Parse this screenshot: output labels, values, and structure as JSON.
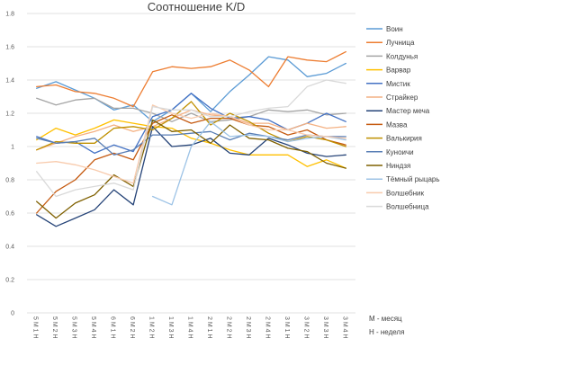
{
  "chart_data": {
    "type": "line",
    "title": "Соотношение K/D",
    "ylim": [
      0,
      1.8
    ],
    "y_ticks": [
      "0",
      "0.2",
      "0.4",
      "0.6",
      "0.8",
      "1",
      "1.2",
      "1.4",
      "1.6",
      "1.8"
    ],
    "grid": true,
    "legend_position": "right",
    "categories": [
      "5 М 1 Н",
      "5 М 2 Н",
      "5 М 3 Н",
      "5 М 4 Н",
      "6 М 1 Н",
      "6 М 2 Н",
      "1 М 2 Н",
      "1 М 3 Н",
      "1 М 4 Н",
      "2 М 1 Н",
      "2 М 2 Н",
      "2 М 3 Н",
      "2 М 4 Н",
      "3 М 1 Н",
      "3 М 2 Н",
      "3 М 3 Н",
      "3 М 4 Н"
    ],
    "notes": [
      "М - месяц",
      "Н - неделя"
    ],
    "series": [
      {
        "name": "Воин",
        "color": "#5B9BD5",
        "values": [
          1.35,
          1.39,
          1.34,
          1.29,
          1.22,
          1.25,
          1.15,
          1.22,
          1.32,
          1.21,
          1.33,
          1.43,
          1.54,
          1.52,
          1.42,
          1.44,
          1.5
        ]
      },
      {
        "name": "Лучница",
        "color": "#ED7D31",
        "values": [
          1.36,
          1.37,
          1.33,
          1.32,
          1.29,
          1.24,
          1.45,
          1.48,
          1.47,
          1.48,
          1.52,
          1.46,
          1.36,
          1.54,
          1.52,
          1.51,
          1.57
        ]
      },
      {
        "name": "Колдунья",
        "color": "#A5A5A5",
        "values": [
          1.29,
          1.25,
          1.28,
          1.29,
          1.23,
          1.23,
          1.2,
          1.15,
          1.2,
          1.15,
          1.16,
          1.18,
          1.22,
          1.21,
          1.22,
          1.19,
          1.2
        ]
      },
      {
        "name": "Варвар",
        "color": "#FFC000",
        "values": [
          1.04,
          1.11,
          1.07,
          1.11,
          1.16,
          1.14,
          1.12,
          1.11,
          1.05,
          1.02,
          0.98,
          0.95,
          0.95,
          0.95,
          0.88,
          0.92,
          0.87
        ]
      },
      {
        "name": "Мистик",
        "color": "#4472C4",
        "values": [
          1.06,
          1.02,
          1.03,
          0.96,
          1.01,
          0.97,
          1.18,
          1.22,
          1.32,
          1.23,
          1.17,
          1.18,
          1.16,
          1.1,
          1.14,
          1.2,
          1.15
        ]
      },
      {
        "name": "Страйкер",
        "color": "#F4B183",
        "values": [
          0.98,
          1.02,
          1.06,
          1.09,
          1.13,
          1.09,
          1.12,
          1.17,
          1.22,
          1.19,
          1.18,
          1.14,
          1.14,
          1.1,
          1.14,
          1.11,
          1.12
        ]
      },
      {
        "name": "Мастер меча",
        "color": "#264478",
        "values": [
          0.59,
          0.52,
          0.57,
          0.62,
          0.74,
          0.65,
          1.12,
          1.0,
          1.01,
          1.05,
          0.96,
          0.95,
          1.05,
          1.01,
          0.96,
          0.94,
          0.95
        ]
      },
      {
        "name": "Мазва",
        "color": "#C55A11",
        "values": [
          0.6,
          0.73,
          0.8,
          0.92,
          0.96,
          0.92,
          1.14,
          1.19,
          1.14,
          1.17,
          1.17,
          1.13,
          1.12,
          1.07,
          1.1,
          1.04,
          1.01
        ]
      },
      {
        "name": "Валькирия",
        "color": "#BF9000",
        "values": [
          0.98,
          1.03,
          1.02,
          1.02,
          1.11,
          1.12,
          1.1,
          1.17,
          1.27,
          1.13,
          1.2,
          1.15,
          1.08,
          1.03,
          1.06,
          1.04,
          1.0
        ]
      },
      {
        "name": "Куноичи",
        "color": "#5A7FB5",
        "values": [
          1.05,
          1.02,
          1.03,
          1.05,
          0.95,
          0.98,
          1.07,
          1.07,
          1.08,
          1.09,
          1.04,
          1.08,
          1.06,
          1.04,
          1.07,
          1.06,
          1.06
        ]
      },
      {
        "name": "Ниндзя",
        "color": "#7F6000",
        "values": [
          0.67,
          0.57,
          0.66,
          0.71,
          0.83,
          0.76,
          1.16,
          1.09,
          1.1,
          1.02,
          1.13,
          1.05,
          1.04,
          0.99,
          0.97,
          0.9,
          0.87
        ]
      },
      {
        "name": "Тёмный рыцарь",
        "color": "#9DC3E6",
        "values": [
          null,
          null,
          null,
          null,
          null,
          null,
          0.7,
          0.65,
          1.0,
          1.15,
          1.06,
          1.07,
          1.06,
          1.03,
          1.05,
          1.06,
          1.04
        ]
      },
      {
        "name": "Волшебник",
        "color": "#F8CBAD",
        "values": [
          0.9,
          0.91,
          0.89,
          0.86,
          0.82,
          0.78,
          1.25,
          1.2,
          1.17,
          1.2,
          1.18,
          1.13,
          1.1,
          1.1,
          1.07,
          1.06,
          1.05
        ]
      },
      {
        "name": "Волшебница",
        "color": "#D9D9D9",
        "values": [
          0.85,
          0.7,
          0.74,
          0.76,
          0.78,
          0.74,
          1.24,
          1.22,
          1.22,
          1.18,
          1.18,
          1.21,
          1.23,
          1.24,
          1.36,
          1.4,
          1.38
        ]
      }
    ]
  }
}
